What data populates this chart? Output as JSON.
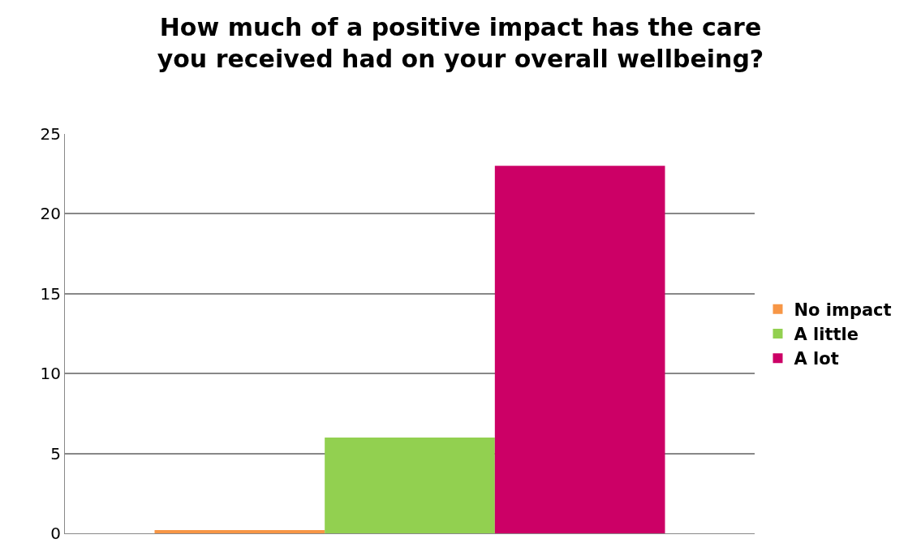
{
  "chart_data": {
    "type": "bar",
    "title": "How much of a positive impact has the care\nyou received had on your overall wellbeing?",
    "categories": [
      null
    ],
    "series": [
      {
        "name": "No impact",
        "color": "#f79646",
        "values": [
          0.2
        ]
      },
      {
        "name": "A little",
        "color": "#92d050",
        "values": [
          6
        ]
      },
      {
        "name": "A lot",
        "color": "#cc0066",
        "values": [
          23
        ]
      }
    ],
    "ylim": [
      0,
      25
    ],
    "yticks": [
      0,
      5,
      10,
      15,
      20,
      25
    ],
    "grid": "y",
    "legend": "right",
    "tick_labels": "y"
  }
}
